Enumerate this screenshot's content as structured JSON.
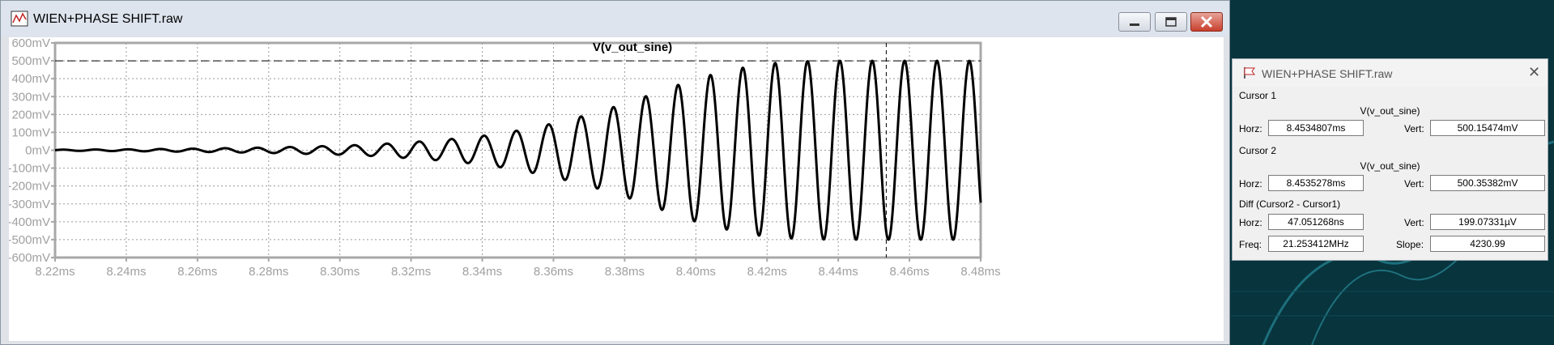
{
  "window": {
    "title": "WIEN+PHASE SHIFT.raw",
    "icon": "waveform-icon"
  },
  "plot": {
    "trace_label": "V(v_out_sine)",
    "background": "#ffffff",
    "trace_color": "#000000",
    "grid_color": "#9a9a9a",
    "label_color": "#a0a0a0"
  },
  "chart_data": {
    "type": "line",
    "title": "V(v_out_sine)",
    "xlabel": "",
    "ylabel": "",
    "x_unit": "ms",
    "xlim": [
      8.22,
      8.48
    ],
    "ylim": [
      -600,
      600
    ],
    "y_unit": "mV",
    "x_ticks": [
      "8.22ms",
      "8.24ms",
      "8.26ms",
      "8.28ms",
      "8.30ms",
      "8.32ms",
      "8.34ms",
      "8.36ms",
      "8.38ms",
      "8.40ms",
      "8.42ms",
      "8.44ms",
      "8.46ms",
      "8.48ms"
    ],
    "y_ticks": [
      "600mV",
      "500mV",
      "400mV",
      "300mV",
      "200mV",
      "100mV",
      "0mV",
      "-100mV",
      "-200mV",
      "-300mV",
      "-400mV",
      "-500mV",
      "-600mV"
    ],
    "grid": true,
    "series": [
      {
        "frequency_kHz": 110,
        "envelope": {
          "x": [
            8.22,
            8.24,
            8.26,
            8.28,
            8.3,
            8.31,
            8.32,
            8.33,
            8.34,
            8.35,
            8.36,
            8.37,
            8.38,
            8.39,
            8.4,
            8.41,
            8.42,
            8.43,
            8.44,
            8.48
          ],
          "amplitude_mV": [
            3,
            5,
            9,
            15,
            25,
            33,
            45,
            60,
            80,
            110,
            150,
            200,
            260,
            330,
            400,
            450,
            485,
            497,
            500,
            500
          ]
        }
      }
    ],
    "reference_line": {
      "y": 500,
      "style": "dashed"
    },
    "cursor_line": {
      "x": 8.4534807,
      "style": "dashed"
    }
  },
  "cursor_dialog": {
    "title": "WIEN+PHASE SHIFT.raw",
    "cursor1": {
      "heading": "Cursor 1",
      "trace": "V(v_out_sine)",
      "horz_label": "Horz:",
      "horz": "8.4534807ms",
      "vert_label": "Vert:",
      "vert": "500.15474mV"
    },
    "cursor2": {
      "heading": "Cursor 2",
      "trace": "V(v_out_sine)",
      "horz_label": "Horz:",
      "horz": "8.4535278ms",
      "vert_label": "Vert:",
      "vert": "500.35382mV"
    },
    "diff": {
      "heading": "Diff (Cursor2 - Cursor1)",
      "horz_label": "Horz:",
      "horz": "47.051268ns",
      "vert_label": "Vert:",
      "vert": "199.07331µV",
      "freq_label": "Freq:",
      "freq": "21.253412MHz",
      "slope_label": "Slope:",
      "slope": "4230.99"
    }
  }
}
